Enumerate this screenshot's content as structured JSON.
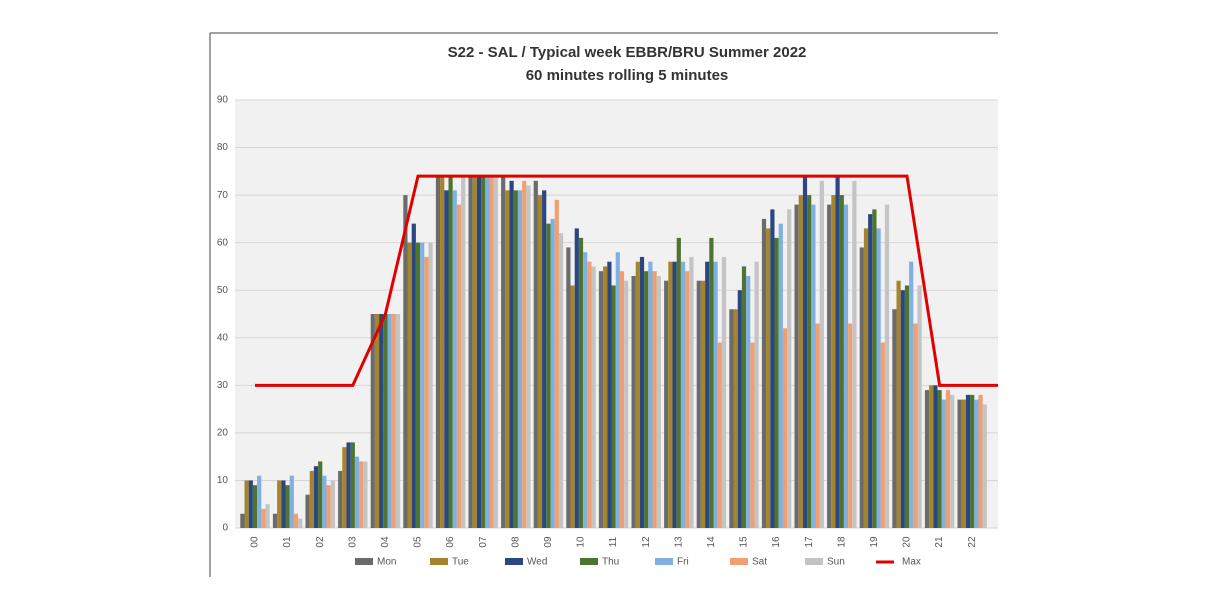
{
  "chart_data": {
    "type": "bar",
    "title": "S22 - SAL / Typical week EBBR/BRU Summer 2022",
    "subtitle": "60 minutes rolling 5 minutes",
    "categories": [
      "00",
      "01",
      "02",
      "03",
      "04",
      "05",
      "06",
      "07",
      "08",
      "09",
      "10",
      "11",
      "12",
      "13",
      "14",
      "15",
      "16",
      "17",
      "18",
      "19",
      "20",
      "21",
      "22"
    ],
    "ylim": [
      0,
      90
    ],
    "yticks": [
      0,
      10,
      20,
      30,
      40,
      50,
      60,
      70,
      80,
      90
    ],
    "grid": true,
    "legend": "bottom",
    "series": [
      {
        "name": "Mon",
        "color": "#6b6b6b",
        "values": [
          3,
          3,
          7,
          12,
          45,
          70,
          74,
          74,
          74,
          73,
          59,
          54,
          53,
          52,
          52,
          46,
          65,
          68,
          68,
          59,
          46,
          29,
          27
        ]
      },
      {
        "name": "Tue",
        "color": "#a5852c",
        "values": [
          10,
          10,
          12,
          17,
          45,
          60,
          74,
          74,
          71,
          70,
          51,
          55,
          56,
          56,
          52,
          46,
          63,
          70,
          70,
          63,
          52,
          30,
          27
        ]
      },
      {
        "name": "Wed",
        "color": "#2c4684",
        "values": [
          10,
          10,
          13,
          18,
          45,
          64,
          71,
          74,
          73,
          71,
          63,
          56,
          57,
          56,
          56,
          50,
          67,
          74,
          74,
          66,
          50,
          30,
          28
        ]
      },
      {
        "name": "Thu",
        "color": "#4d7530",
        "values": [
          9,
          9,
          14,
          18,
          45,
          60,
          74,
          74,
          71,
          64,
          61,
          51,
          54,
          61,
          61,
          55,
          61,
          70,
          70,
          67,
          51,
          29,
          28
        ]
      },
      {
        "name": "Fri",
        "color": "#80b0e0",
        "values": [
          11,
          11,
          11,
          15,
          45,
          60,
          71,
          74,
          71,
          65,
          58,
          58,
          56,
          56,
          56,
          53,
          64,
          68,
          68,
          63,
          56,
          27,
          27
        ]
      },
      {
        "name": "Sat",
        "color": "#f0a070",
        "values": [
          4,
          3,
          9,
          14,
          45,
          57,
          68,
          74,
          73,
          69,
          56,
          54,
          54,
          54,
          39,
          39,
          42,
          43,
          43,
          39,
          43,
          29,
          28
        ]
      },
      {
        "name": "Sun",
        "color": "#c4c4c4",
        "values": [
          5,
          2,
          10,
          14,
          45,
          60,
          74,
          74,
          72,
          62,
          55,
          52,
          53,
          57,
          57,
          56,
          67,
          73,
          73,
          68,
          51,
          28,
          26
        ]
      },
      {
        "name": "Max",
        "color": "#e00000",
        "type": "line",
        "values": [
          30,
          30,
          30,
          30,
          45,
          74,
          74,
          74,
          74,
          74,
          74,
          74,
          74,
          74,
          74,
          74,
          74,
          74,
          74,
          74,
          74,
          30,
          30
        ]
      }
    ]
  }
}
